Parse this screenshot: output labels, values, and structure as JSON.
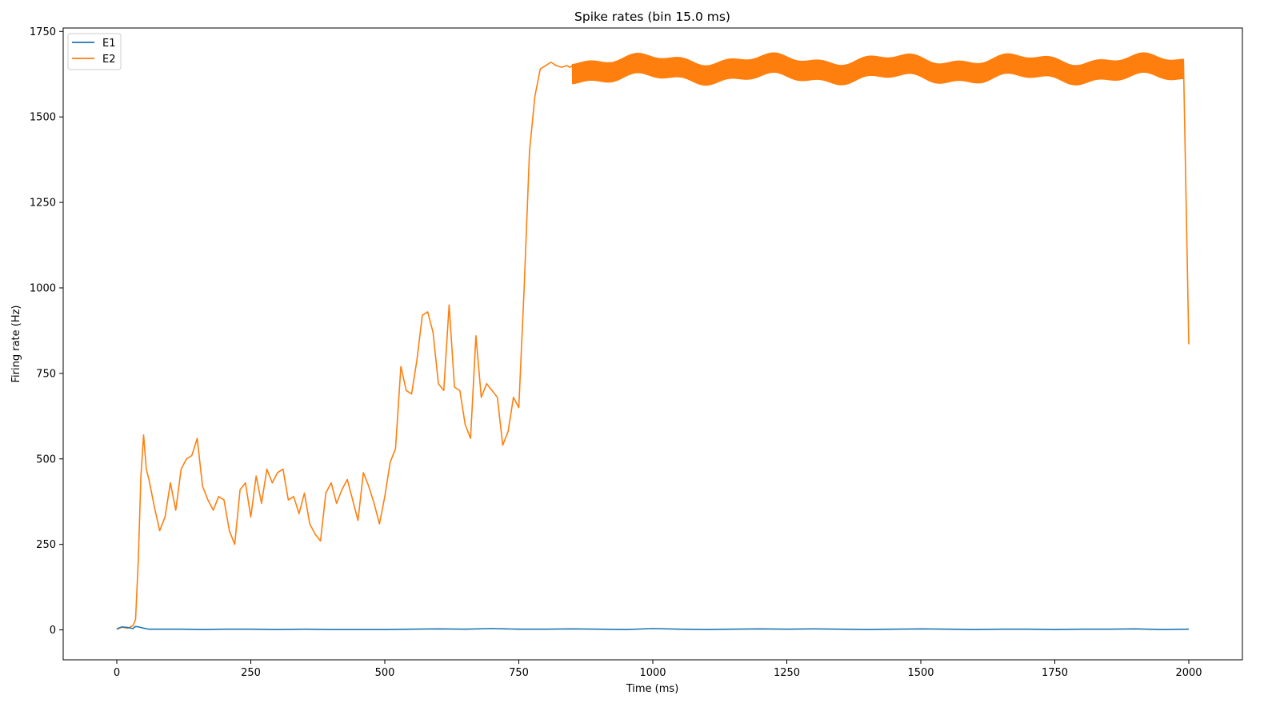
{
  "chart_data": {
    "type": "line",
    "title": "Spike rates (bin 15.0 ms)",
    "xlabel": "Time (ms)",
    "ylabel": "Firing rate (Hz)",
    "xlim": [
      -100,
      2100
    ],
    "ylim": [
      -87.5,
      1760
    ],
    "xticks": [
      0,
      250,
      500,
      750,
      1000,
      1250,
      1500,
      1750,
      2000
    ],
    "yticks": [
      0,
      250,
      500,
      750,
      1000,
      1250,
      1500,
      1750
    ],
    "grid": false,
    "legend_position": "top-left",
    "series": [
      {
        "name": "E1",
        "color": "#1f77b4",
        "x": [
          0,
          10,
          20,
          30,
          35,
          40,
          50,
          60,
          80,
          120,
          160,
          200,
          250,
          300,
          350,
          400,
          450,
          500,
          550,
          600,
          650,
          700,
          750,
          800,
          850,
          900,
          950,
          1000,
          1050,
          1100,
          1150,
          1200,
          1250,
          1300,
          1350,
          1400,
          1450,
          1500,
          1550,
          1600,
          1650,
          1700,
          1750,
          1800,
          1850,
          1900,
          1950,
          2000
        ],
        "values": [
          3,
          9,
          7,
          4,
          10,
          9,
          5,
          2,
          2,
          2,
          1,
          2,
          2,
          1,
          2,
          1,
          1,
          1,
          2,
          3,
          2,
          4,
          2,
          2,
          3,
          2,
          1,
          4,
          2,
          1,
          2,
          3,
          2,
          3,
          2,
          1,
          2,
          3,
          2,
          1,
          2,
          2,
          1,
          2,
          2,
          3,
          1,
          2
        ]
      },
      {
        "name": "E2",
        "color": "#ff7f0e",
        "x": [
          0,
          10,
          20,
          30,
          35,
          40,
          45,
          50,
          55,
          60,
          70,
          80,
          90,
          100,
          110,
          120,
          130,
          140,
          150,
          160,
          170,
          180,
          190,
          200,
          210,
          220,
          230,
          240,
          250,
          260,
          270,
          280,
          290,
          300,
          310,
          320,
          330,
          340,
          350,
          360,
          370,
          380,
          390,
          400,
          410,
          420,
          430,
          440,
          450,
          460,
          470,
          480,
          490,
          500,
          510,
          520,
          530,
          540,
          550,
          560,
          570,
          580,
          590,
          600,
          610,
          620,
          630,
          640,
          650,
          660,
          670,
          680,
          690,
          700,
          710,
          720,
          730,
          740,
          750,
          760,
          770,
          780,
          790,
          800,
          810,
          820,
          830,
          840,
          845,
          850
        ],
        "values": [
          2,
          8,
          5,
          12,
          30,
          200,
          450,
          570,
          470,
          440,
          360,
          290,
          330,
          430,
          350,
          470,
          500,
          510,
          560,
          420,
          380,
          350,
          390,
          380,
          290,
          250,
          410,
          430,
          330,
          450,
          370,
          470,
          430,
          460,
          470,
          380,
          390,
          340,
          400,
          310,
          280,
          260,
          400,
          430,
          370,
          410,
          440,
          380,
          320,
          460,
          420,
          370,
          310,
          390,
          490,
          530,
          770,
          700,
          690,
          790,
          920,
          930,
          870,
          720,
          700,
          950,
          710,
          700,
          600,
          560,
          860,
          680,
          720,
          700,
          680,
          540,
          580,
          680,
          650,
          1000,
          1400,
          1560,
          1640,
          1650,
          1660,
          1650,
          1645,
          1650,
          1645,
          1650
        ]
      }
    ],
    "oscillating_band": {
      "series": "E2",
      "x_start": 850,
      "x_end": 1990,
      "center": 1640,
      "amplitude": 28,
      "final_drop_x": 2000,
      "final_drop_value": 835
    }
  }
}
